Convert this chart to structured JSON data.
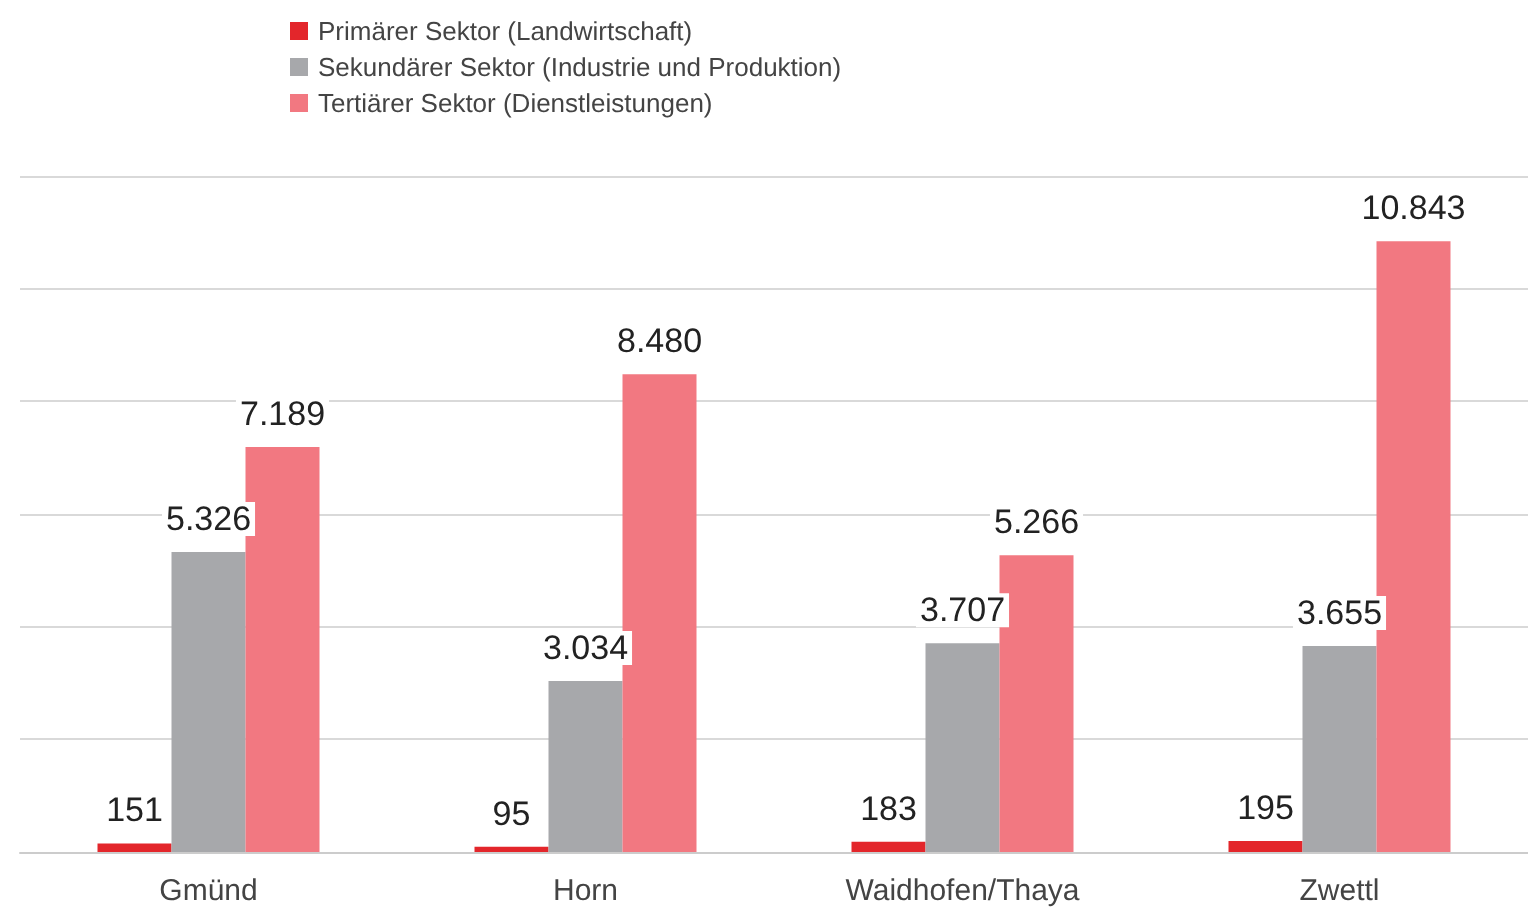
{
  "chart_data": {
    "type": "bar",
    "categories": [
      "Gmünd",
      "Horn",
      "Waidhofen/Thaya",
      "Zwettl"
    ],
    "series": [
      {
        "name": "Primärer Sektor (Landwirtschaft)",
        "color": "#e3262b",
        "values": [
          151,
          95,
          183,
          195
        ],
        "value_labels": [
          "151",
          "95",
          "183",
          "195"
        ]
      },
      {
        "name": "Sekundärer Sektor (Industrie und Produktion)",
        "color": "#a7a8ab",
        "values": [
          5326,
          3034,
          3707,
          3655
        ],
        "value_labels": [
          "5.326",
          "3.034",
          "3.707",
          "3.655"
        ]
      },
      {
        "name": "Tertiärer Sektor (Dienstleistungen)",
        "color": "#f27881",
        "values": [
          7189,
          8480,
          5266,
          10843
        ],
        "value_labels": [
          "7.189",
          "8.480",
          "5.266",
          "10.843"
        ]
      }
    ],
    "ylim": [
      0,
      12000
    ],
    "yticks": [
      {
        "value": 0,
        "label": null
      },
      {
        "value": 2000,
        "label": null
      },
      {
        "value": 4000,
        "label": null
      },
      {
        "value": 6000,
        "label": null
      },
      {
        "value": 8000,
        "label": null
      },
      {
        "value": 10000,
        "label": null
      },
      {
        "value": 12000,
        "label": null
      }
    ],
    "tick_labels": "x",
    "grid": "y",
    "legend": "top left"
  }
}
